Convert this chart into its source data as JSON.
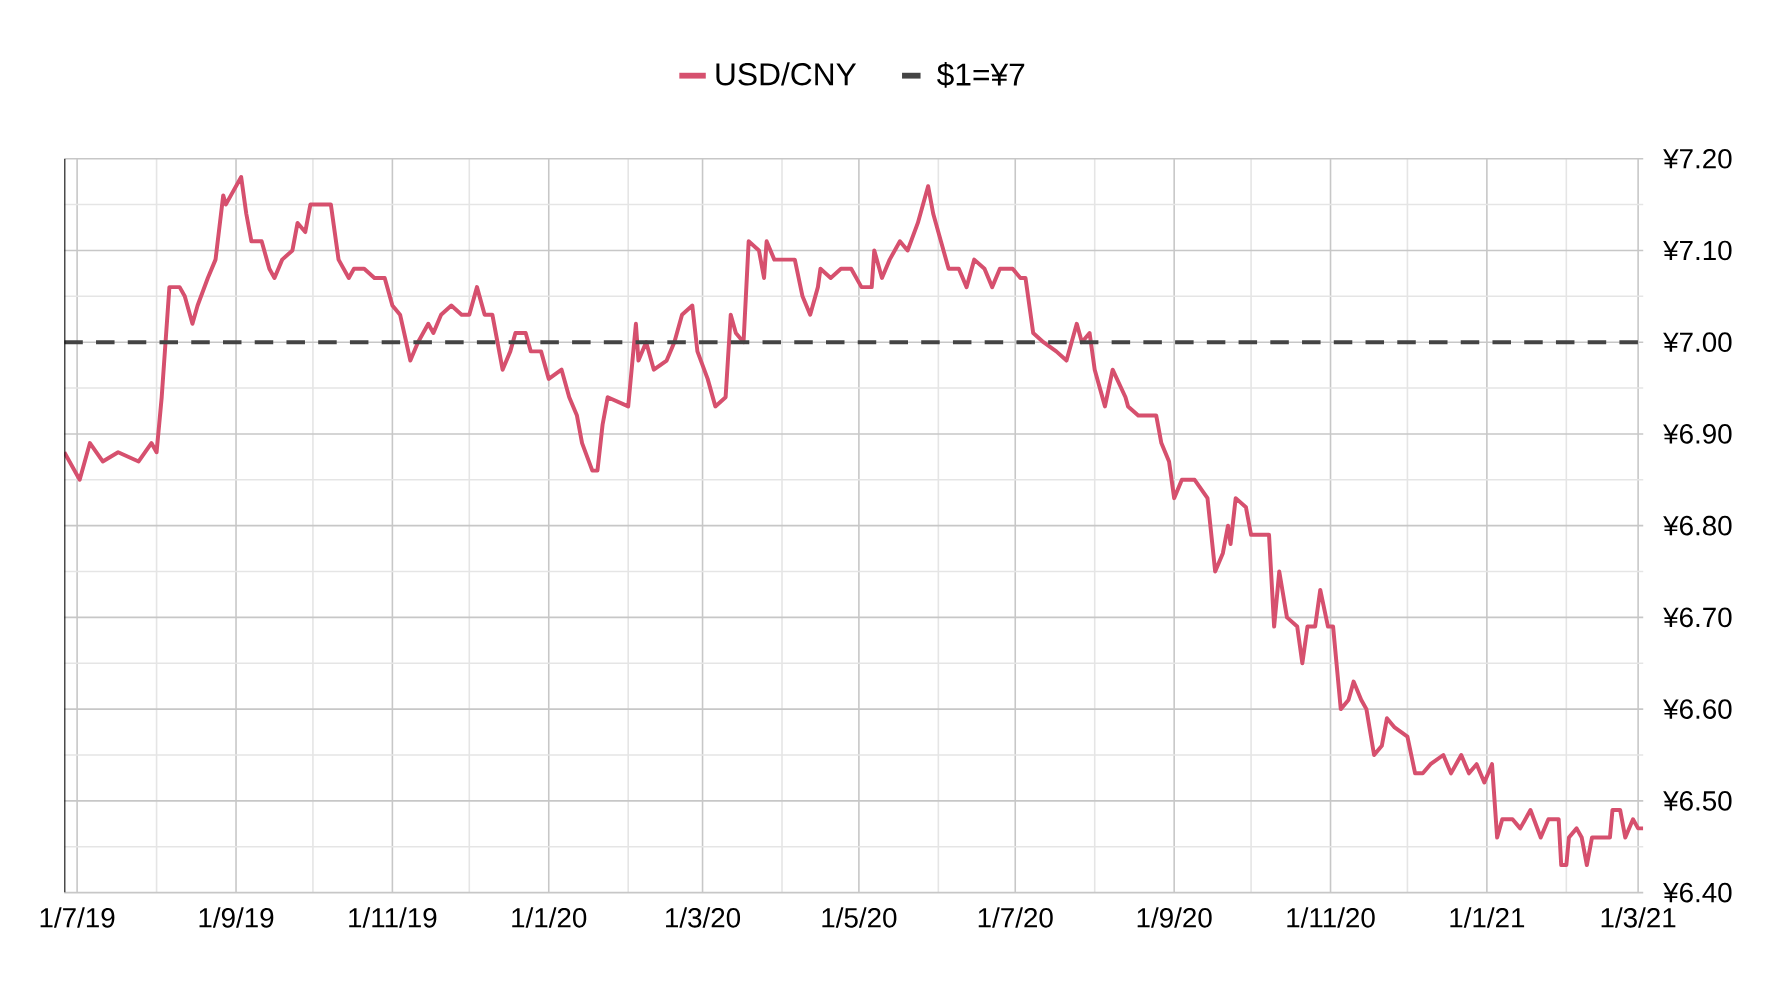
{
  "chart_data": {
    "type": "line",
    "legend": "top",
    "grid": true,
    "tick_labels": "xy",
    "xlim": [
      "2019-06-26",
      "2021-03-03"
    ],
    "xticks": [
      {
        "value": "2019-07-01",
        "label": "1/7/19"
      },
      {
        "value": "2019-08-01",
        "label": null
      },
      {
        "value": "2019-09-01",
        "label": "1/9/19"
      },
      {
        "value": "2019-10-01",
        "label": null
      },
      {
        "value": "2019-11-01",
        "label": "1/11/19"
      },
      {
        "value": "2019-12-01",
        "label": null
      },
      {
        "value": "2020-01-01",
        "label": "1/1/20"
      },
      {
        "value": "2020-02-01",
        "label": null
      },
      {
        "value": "2020-03-01",
        "label": "1/3/20"
      },
      {
        "value": "2020-04-01",
        "label": null
      },
      {
        "value": "2020-05-01",
        "label": "1/5/20"
      },
      {
        "value": "2020-06-01",
        "label": null
      },
      {
        "value": "2020-07-01",
        "label": "1/7/20"
      },
      {
        "value": "2020-08-01",
        "label": null
      },
      {
        "value": "2020-09-01",
        "label": "1/9/20"
      },
      {
        "value": "2020-10-01",
        "label": null
      },
      {
        "value": "2020-11-01",
        "label": "1/11/20"
      },
      {
        "value": "2020-12-01",
        "label": null
      },
      {
        "value": "2021-01-01",
        "label": "1/1/21"
      },
      {
        "value": "2021-02-01",
        "label": null
      },
      {
        "value": "2021-03-01",
        "label": "1/3/21"
      }
    ],
    "ylim": [
      6.4,
      7.2
    ],
    "yticks": [
      {
        "value": 6.4,
        "label": "¥6.40"
      },
      {
        "value": 6.45,
        "label": null
      },
      {
        "value": 6.5,
        "label": "¥6.50"
      },
      {
        "value": 6.55,
        "label": null
      },
      {
        "value": 6.6,
        "label": "¥6.60"
      },
      {
        "value": 6.65,
        "label": null
      },
      {
        "value": 6.7,
        "label": "¥6.70"
      },
      {
        "value": 6.75,
        "label": null
      },
      {
        "value": 6.8,
        "label": "¥6.80"
      },
      {
        "value": 6.85,
        "label": null
      },
      {
        "value": 6.9,
        "label": "¥6.90"
      },
      {
        "value": 6.95,
        "label": null
      },
      {
        "value": 7.0,
        "label": "¥7.00"
      },
      {
        "value": 7.05,
        "label": null
      },
      {
        "value": 7.1,
        "label": "¥7.10"
      },
      {
        "value": 7.15,
        "label": null
      },
      {
        "value": 7.2,
        "label": "¥7.20"
      }
    ],
    "ref_lines": [
      {
        "axis": "y",
        "value": 7.0,
        "label": "$1=¥7",
        "color": "#444444",
        "line_style": "dashed"
      }
    ],
    "series": [
      {
        "name": "USD/CNY",
        "color": "#d6506e",
        "line_style": "solid",
        "marker": "none",
        "x": [
          "2019-06-26",
          "2019-07-02",
          "2019-07-06",
          "2019-07-11",
          "2019-07-17",
          "2019-07-25",
          "2019-07-30",
          "2019-08-01",
          "2019-08-03",
          "2019-08-06",
          "2019-08-10",
          "2019-08-12",
          "2019-08-15",
          "2019-08-17",
          "2019-08-21",
          "2019-08-24",
          "2019-08-27",
          "2019-08-28",
          "2019-08-30",
          "2019-09-03",
          "2019-09-05",
          "2019-09-07",
          "2019-09-11",
          "2019-09-14",
          "2019-09-16",
          "2019-09-19",
          "2019-09-23",
          "2019-09-25",
          "2019-09-28",
          "2019-09-30",
          "2019-10-08",
          "2019-10-11",
          "2019-10-15",
          "2019-10-17",
          "2019-10-21",
          "2019-10-25",
          "2019-10-29",
          "2019-11-01",
          "2019-11-04",
          "2019-11-08",
          "2019-11-11",
          "2019-11-15",
          "2019-11-17",
          "2019-11-20",
          "2019-11-24",
          "2019-11-28",
          "2019-12-01",
          "2019-12-04",
          "2019-12-07",
          "2019-12-10",
          "2019-12-14",
          "2019-12-17",
          "2019-12-19",
          "2019-12-23",
          "2019-12-25",
          "2019-12-29",
          "2020-01-01",
          "2020-01-06",
          "2020-01-09",
          "2020-01-12",
          "2020-01-14",
          "2020-01-18",
          "2020-01-20",
          "2020-01-22",
          "2020-01-24",
          "2020-02-01",
          "2020-02-04",
          "2020-02-05",
          "2020-02-08",
          "2020-02-11",
          "2020-02-16",
          "2020-02-19",
          "2020-02-22",
          "2020-02-26",
          "2020-02-28",
          "2020-03-03",
          "2020-03-06",
          "2020-03-10",
          "2020-03-12",
          "2020-03-14",
          "2020-03-17",
          "2020-03-19",
          "2020-03-23",
          "2020-03-25",
          "2020-03-26",
          "2020-03-29",
          "2020-04-01",
          "2020-04-06",
          "2020-04-09",
          "2020-04-12",
          "2020-04-15",
          "2020-04-16",
          "2020-04-20",
          "2020-04-24",
          "2020-04-28",
          "2020-05-02",
          "2020-05-06",
          "2020-05-07",
          "2020-05-10",
          "2020-05-13",
          "2020-05-17",
          "2020-05-20",
          "2020-05-24",
          "2020-05-28",
          "2020-05-30",
          "2020-06-02",
          "2020-06-05",
          "2020-06-09",
          "2020-06-12",
          "2020-06-15",
          "2020-06-19",
          "2020-06-22",
          "2020-06-25",
          "2020-06-30",
          "2020-07-03",
          "2020-07-05",
          "2020-07-08",
          "2020-07-12",
          "2020-07-17",
          "2020-07-21",
          "2020-07-25",
          "2020-07-27",
          "2020-07-30",
          "2020-08-01",
          "2020-08-05",
          "2020-08-08",
          "2020-08-13",
          "2020-08-14",
          "2020-08-18",
          "2020-08-22",
          "2020-08-25",
          "2020-08-27",
          "2020-08-30",
          "2020-09-01",
          "2020-09-04",
          "2020-09-09",
          "2020-09-14",
          "2020-09-17",
          "2020-09-20",
          "2020-09-22",
          "2020-09-23",
          "2020-09-25",
          "2020-09-29",
          "2020-10-01",
          "2020-10-08",
          "2020-10-10",
          "2020-10-12",
          "2020-10-15",
          "2020-10-19",
          "2020-10-21",
          "2020-10-23",
          "2020-10-26",
          "2020-10-28",
          "2020-10-31",
          "2020-11-02",
          "2020-11-05",
          "2020-11-08",
          "2020-11-10",
          "2020-11-13",
          "2020-11-15",
          "2020-11-18",
          "2020-11-21",
          "2020-11-23",
          "2020-11-26",
          "2020-12-01",
          "2020-12-04",
          "2020-12-07",
          "2020-12-10",
          "2020-12-15",
          "2020-12-18",
          "2020-12-22",
          "2020-12-25",
          "2020-12-28",
          "2020-12-31",
          "2021-01-03",
          "2021-01-05",
          "2021-01-07",
          "2021-01-11",
          "2021-01-14",
          "2021-01-18",
          "2021-01-22",
          "2021-01-25",
          "2021-01-29",
          "2021-01-30",
          "2021-02-01",
          "2021-02-02",
          "2021-02-05",
          "2021-02-07",
          "2021-02-09",
          "2021-02-11",
          "2021-02-18",
          "2021-02-19",
          "2021-02-22",
          "2021-02-24",
          "2021-02-27",
          "2021-03-01",
          "2021-03-03"
        ],
        "values": [
          6.88,
          6.85,
          6.89,
          6.87,
          6.88,
          6.87,
          6.89,
          6.88,
          6.94,
          7.06,
          7.06,
          7.05,
          7.02,
          7.04,
          7.07,
          7.09,
          7.16,
          7.15,
          7.16,
          7.18,
          7.14,
          7.11,
          7.11,
          7.08,
          7.07,
          7.09,
          7.1,
          7.13,
          7.12,
          7.15,
          7.15,
          7.09,
          7.07,
          7.08,
          7.08,
          7.07,
          7.07,
          7.04,
          7.03,
          6.98,
          7.0,
          7.02,
          7.01,
          7.03,
          7.04,
          7.03,
          7.03,
          7.06,
          7.03,
          7.03,
          6.97,
          6.99,
          7.01,
          7.01,
          6.99,
          6.99,
          6.96,
          6.97,
          6.94,
          6.92,
          6.89,
          6.86,
          6.86,
          6.91,
          6.94,
          6.93,
          7.02,
          6.98,
          7.0,
          6.97,
          6.98,
          7.0,
          7.03,
          7.04,
          6.99,
          6.96,
          6.93,
          6.94,
          7.03,
          7.01,
          7.0,
          7.11,
          7.1,
          7.07,
          7.11,
          7.09,
          7.09,
          7.09,
          7.05,
          7.03,
          7.06,
          7.08,
          7.07,
          7.08,
          7.08,
          7.06,
          7.06,
          7.1,
          7.07,
          7.09,
          7.11,
          7.1,
          7.13,
          7.17,
          7.14,
          7.11,
          7.08,
          7.08,
          7.06,
          7.09,
          7.08,
          7.06,
          7.08,
          7.08,
          7.07,
          7.07,
          7.01,
          7.0,
          6.99,
          6.98,
          7.02,
          7.0,
          7.01,
          6.97,
          6.93,
          6.97,
          6.94,
          6.93,
          6.92,
          6.92,
          6.92,
          6.89,
          6.87,
          6.83,
          6.85,
          6.85,
          6.83,
          6.75,
          6.77,
          6.8,
          6.78,
          6.83,
          6.82,
          6.79,
          6.79,
          6.69,
          6.75,
          6.7,
          6.69,
          6.65,
          6.69,
          6.69,
          6.73,
          6.69,
          6.69,
          6.6,
          6.61,
          6.63,
          6.61,
          6.6,
          6.55,
          6.56,
          6.59,
          6.58,
          6.57,
          6.53,
          6.53,
          6.54,
          6.55,
          6.53,
          6.55,
          6.53,
          6.54,
          6.52,
          6.54,
          6.46,
          6.48,
          6.48,
          6.47,
          6.49,
          6.46,
          6.48,
          6.48,
          6.43,
          6.43,
          6.46,
          6.47,
          6.46,
          6.43,
          6.46,
          6.46,
          6.49,
          6.49,
          6.46,
          6.48,
          6.47,
          6.47
        ]
      }
    ]
  }
}
